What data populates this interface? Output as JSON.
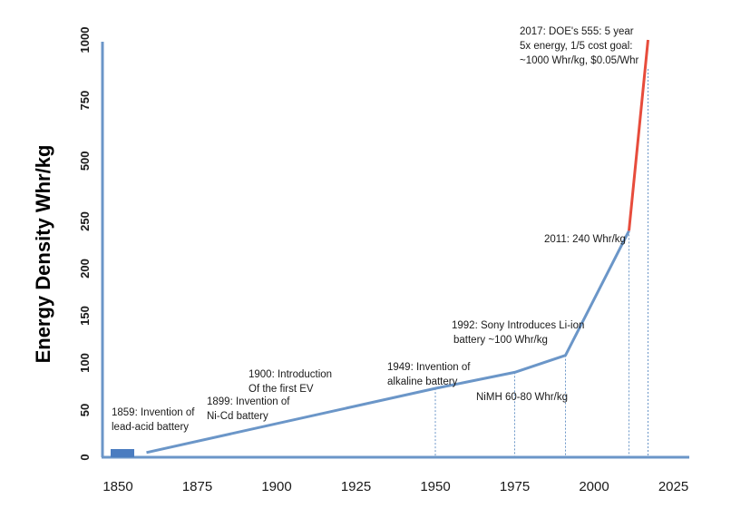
{
  "chart_data": {
    "type": "line",
    "ylabel": "Energy Density Whr/kg",
    "xlabel": "",
    "x_ticks": [
      1850,
      1875,
      1900,
      1925,
      1950,
      1975,
      2000,
      2025
    ],
    "y_ticks": [
      {
        "label": "0",
        "color": "#1a1a1a"
      },
      {
        "label": "50",
        "color": "#1a1a1a"
      },
      {
        "label": "100",
        "color": "#1a1a1a"
      },
      {
        "label": "150",
        "color": "#1a1a1a"
      },
      {
        "label": "200",
        "color": "#1a1a1a"
      },
      {
        "label": "250",
        "color": "#1a1a1a"
      },
      {
        "label": "500",
        "color": "#e74c3c"
      },
      {
        "label": "750",
        "color": "#e74c3c"
      },
      {
        "label": "1000",
        "color": "#e74c3c"
      }
    ],
    "series": [
      {
        "color": "#6b96c8",
        "points": [
          {
            "x": 1859,
            "y": 5
          },
          {
            "x": 1950,
            "y": 73
          },
          {
            "x": 1975,
            "y": 90
          },
          {
            "x": 1991,
            "y": 108
          },
          {
            "x": 2011,
            "y": 240
          }
        ]
      },
      {
        "color": "#e74c3c",
        "points": [
          {
            "x": 2011,
            "y": 240
          },
          {
            "x": 2017,
            "y": 1000
          }
        ]
      }
    ],
    "reference_years": [
      1950,
      1975,
      1991,
      2011,
      2017
    ],
    "annotations": [
      {
        "lines": [
          "1859: Invention of",
          "lead-acid battery"
        ]
      },
      {
        "lines": [
          "1899: Invention of",
          "Ni-Cd  battery"
        ]
      },
      {
        "lines": [
          "1900: Introduction",
          "Of the first EV"
        ]
      },
      {
        "lines": [
          "1949: Invention of",
          "alkaline  battery"
        ]
      },
      {
        "lines": [
          "NiMH 60-80 Whr/kg"
        ]
      },
      {
        "lines": [
          "1992: Sony Introduces Li-ion",
          "battery ~100 Whr/kg"
        ]
      },
      {
        "lines": [
          "2011: 240 Whr/kg"
        ]
      },
      {
        "lines": [
          "2017: DOE's 555: 5 year",
          "5x energy, 1/5 cost goal:",
          "~1000 Whr/kg, $0.05/Whr"
        ]
      }
    ],
    "colors": {
      "axis": "#6b96c8",
      "line": "#6b96c8",
      "highlight": "#e74c3c",
      "marker": "#4a7cc0"
    }
  }
}
